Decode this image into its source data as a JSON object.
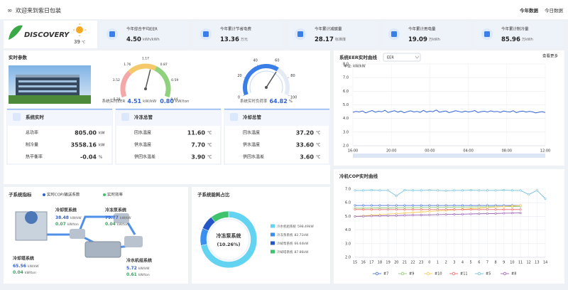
{
  "header": {
    "title": "欢迎来到紫日包装",
    "tabs": [
      "今年数据",
      "今日数据"
    ]
  },
  "weather": {
    "brand": "DISCOVERY",
    "temperature": "39",
    "unit": "℃"
  },
  "kpis": [
    {
      "label": "今年综合平均EER",
      "value": "4.50",
      "unit": "kWh/kWh"
    },
    {
      "label": "今年累计节省电费",
      "value": "13.36",
      "unit": "万元"
    },
    {
      "label": "今年累计减碳量",
      "value": "28.17",
      "unit": "标准煤"
    },
    {
      "label": "今年累计用电量",
      "value": "19.09",
      "unit": "万kWh"
    },
    {
      "label": "今年累计制冷量",
      "value": "85.96",
      "unit": "万kWh"
    }
  ],
  "realtime": {
    "title": "实时参数",
    "cards": [
      {
        "title": "系统实时",
        "rows": [
          {
            "label": "总功率",
            "value": "805.00",
            "unit": "kW"
          },
          {
            "label": "制冷量",
            "value": "3558.16",
            "unit": "kW"
          },
          {
            "label": "热平衡率",
            "value": "-0.04",
            "unit": "%"
          }
        ]
      },
      {
        "title": "冷冻总管",
        "rows": [
          {
            "label": "回水温度",
            "value": "11.60",
            "unit": "℃"
          },
          {
            "label": "供水温度",
            "value": "7.70",
            "unit": "℃"
          },
          {
            "label": "供回水温差",
            "value": "3.90",
            "unit": "℃"
          }
        ]
      },
      {
        "title": "冷却总管",
        "rows": [
          {
            "label": "回水温度",
            "value": "37.20",
            "unit": "℃"
          },
          {
            "label": "供水温度",
            "value": "33.60",
            "unit": "℃"
          },
          {
            "label": "供回水温差",
            "value": "3.60",
            "unit": "℃"
          }
        ]
      }
    ]
  },
  "subsystems": {
    "title": "子系统指标",
    "legend": [
      "实时COP/输送系数",
      "实时效率"
    ],
    "items": [
      {
        "name": "冷却泵系统",
        "cop": "38.48",
        "cop_unit": "kW/kW",
        "eff": "0.07",
        "eff_unit": "kW/ton"
      },
      {
        "name": "冷冻泵系统",
        "cop": "79.77",
        "cop_unit": "kW/kW",
        "eff": "0.04",
        "eff_unit": "kW/ton"
      },
      {
        "name": "冷却塔系统",
        "cop": "65.56",
        "cop_unit": "kW/kW",
        "eff": "0.04",
        "eff_unit": "kW/ton"
      },
      {
        "name": "冷水机组系统",
        "cop": "5.72",
        "cop_unit": "kW/kW",
        "eff": "0.61",
        "eff_unit": "kW/ton"
      }
    ]
  },
  "chart_data": [
    {
      "type": "gauge",
      "label": "系统实时EER",
      "value": 4.51,
      "unit": "kW/kW",
      "secondary": "0.80",
      "secondary_unit": "kW/ton",
      "scale_labels": [
        "5.28",
        "3.52",
        "1.76",
        "1.17",
        "0.87",
        "0.59",
        "0.44"
      ],
      "ylim": [
        0,
        8
      ]
    },
    {
      "type": "gauge",
      "label": "系统实时负荷率",
      "value": 64.82,
      "unit": "%",
      "ylim": [
        0,
        100
      ],
      "yticks": [
        0,
        20,
        40,
        60,
        80,
        100
      ]
    },
    {
      "type": "line",
      "title": "系统EER实时曲线",
      "selector": "EER",
      "link": "查看更多",
      "y_label": "单位: kW/kW",
      "color": "#2f62d8",
      "categories": [
        "16:00",
        null,
        null,
        null,
        null,
        null,
        null,
        null,
        null,
        null,
        null,
        null,
        "20:00",
        null,
        null,
        null,
        null,
        null,
        null,
        null,
        null,
        null,
        null,
        null,
        "00:00",
        null,
        null,
        null,
        null,
        null,
        null,
        null,
        null,
        null,
        null,
        null,
        "04:00",
        null,
        null,
        null,
        null,
        null,
        null,
        null,
        null,
        null,
        null,
        null,
        "08:00",
        null,
        null,
        null,
        null,
        null,
        null,
        null,
        null,
        null,
        null,
        null,
        "12:00"
      ],
      "values": [
        4.45,
        4.52,
        4.48,
        4.55,
        4.41,
        4.5,
        4.58,
        4.46,
        4.53,
        4.49,
        4.6,
        4.44,
        4.51,
        4.57,
        4.47,
        4.54,
        4.42,
        4.5,
        4.56,
        4.48,
        4.52,
        4.45,
        4.59,
        4.47,
        4.53,
        4.5,
        4.62,
        4.46,
        4.51,
        4.55,
        4.43,
        4.49,
        4.57,
        4.52,
        4.46,
        4.54,
        4.48,
        4.51,
        4.58,
        4.44,
        4.5,
        4.53,
        4.47,
        4.56,
        4.49,
        4.52,
        4.45,
        4.55,
        4.5,
        4.48,
        4.57,
        4.43,
        4.51,
        4.54,
        4.47,
        4.52,
        4.49,
        4.41,
        4.46,
        4.5,
        4.44
      ],
      "ylim": [
        2,
        8
      ],
      "yticks": [
        {
          "value": 2,
          "label": "2.0"
        },
        {
          "value": 3,
          "label": "3.0"
        },
        {
          "value": 4,
          "label": "4.0"
        },
        {
          "value": 5,
          "label": "5.0"
        },
        {
          "value": 6,
          "label": "6.0"
        },
        {
          "value": 7,
          "label": "7.0"
        },
        {
          "value": 8,
          "label": "8.0"
        }
      ],
      "grid": true
    },
    {
      "type": "line",
      "title": "冷机COP实时曲线",
      "markers": true,
      "categories": [
        "15",
        "16",
        "17",
        "18",
        "19",
        "20",
        "21",
        "22",
        "23",
        "0",
        "1",
        "2",
        "3",
        "4",
        "5",
        "6",
        "7",
        "8",
        "9",
        "10",
        "11",
        "12",
        "13",
        "14"
      ],
      "series": [
        {
          "name": "#7",
          "color": "#4a6fd8",
          "values": [
            5.8,
            5.8,
            5.8,
            5.8,
            5.8,
            5.8,
            5.8,
            5.8,
            5.8,
            5.8,
            5.8,
            5.8,
            5.8,
            5.8,
            5.8,
            5.8,
            5.8,
            5.8,
            5.8,
            5.8,
            5.8,
            null,
            null,
            null
          ]
        },
        {
          "name": "#9",
          "color": "#91cc75",
          "values": [
            5.6,
            5.6,
            5.61,
            5.62,
            5.62,
            5.63,
            5.64,
            5.64,
            5.65,
            5.66,
            5.66,
            5.67,
            5.68,
            5.68,
            5.69,
            5.7,
            5.7,
            5.71,
            5.72,
            5.72,
            5.73,
            null,
            null,
            null
          ]
        },
        {
          "name": "#10",
          "color": "#fac858",
          "values": [
            5.0,
            5.04,
            5.08,
            5.12,
            5.16,
            5.2,
            5.24,
            5.28,
            5.32,
            5.36,
            5.4,
            5.44,
            5.48,
            5.52,
            5.56,
            5.6,
            5.64,
            5.68,
            5.72,
            5.76,
            5.8,
            null,
            null,
            null
          ]
        },
        {
          "name": "#11",
          "color": "#ee6666",
          "values": [
            5.5,
            5.5,
            5.5,
            5.5,
            5.5,
            5.5,
            5.5,
            5.5,
            5.5,
            5.5,
            5.5,
            5.5,
            5.5,
            5.5,
            5.5,
            5.5,
            5.5,
            5.5,
            5.5,
            5.5,
            5.5,
            null,
            null,
            null
          ]
        },
        {
          "name": "#5",
          "color": "#73c0de",
          "values": [
            6.9,
            6.9,
            6.92,
            6.9,
            6.9,
            6.5,
            6.92,
            6.9,
            6.9,
            6.92,
            6.9,
            6.88,
            6.9,
            6.9,
            6.92,
            6.9,
            6.9,
            6.9,
            6.92,
            6.9,
            6.9,
            6.6,
            6.9,
            6.3
          ]
        },
        {
          "name": "#8",
          "color": "#9a60b4",
          "values": [
            5.0,
            5.01,
            5.03,
            5.04,
            5.05,
            5.06,
            5.08,
            5.09,
            5.1,
            5.11,
            5.13,
            5.14,
            5.15,
            5.16,
            5.18,
            5.19,
            5.2,
            5.21,
            5.23,
            5.24,
            5.25,
            null,
            null,
            null
          ]
        }
      ],
      "ylim": [
        2,
        7
      ],
      "yticks": [
        {
          "value": 2,
          "label": "2.0"
        },
        {
          "value": 3,
          "label": "3.0"
        },
        {
          "value": 4,
          "label": "4.0"
        },
        {
          "value": 5,
          "label": "5.0"
        },
        {
          "value": 6,
          "label": "6.0"
        },
        {
          "value": 7,
          "label": "7.0"
        }
      ],
      "grid": true
    },
    {
      "type": "pie",
      "title": "子系统能耗占比",
      "categories": [
        "冷水机组系统",
        "冷冻泵系统",
        "冷却泵系统",
        "冷却塔系统"
      ],
      "values": [
        598.49,
        82.71,
        66.64,
        87.86
      ],
      "value_labels": [
        "598.49kW",
        "82.71kW",
        "66.64kW",
        "87.86kW"
      ],
      "colors": [
        "#63d3f2",
        "#3a8ef0",
        "#2456c8",
        "#3ec46d"
      ],
      "center_label": "冷冻泵系统",
      "center_value": "(10.26%)"
    }
  ]
}
